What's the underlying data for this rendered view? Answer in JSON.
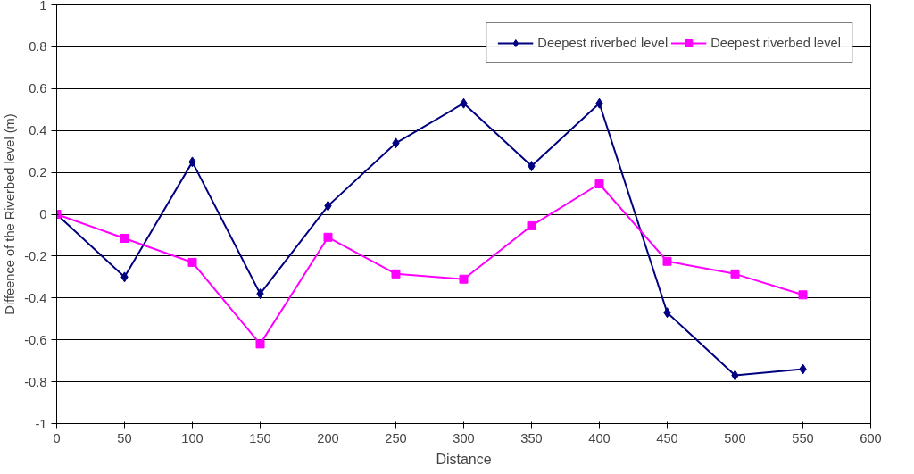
{
  "chart_data": {
    "type": "line",
    "xlabel": "Distance",
    "ylabel": "Diffeence of the Riverbed level (m)",
    "x": [
      0,
      50,
      100,
      150,
      200,
      250,
      300,
      350,
      400,
      450,
      500,
      550
    ],
    "series": [
      {
        "name": "Deepest riverbed level",
        "color": "#000080",
        "marker": "diamond",
        "values": [
          0,
          -0.3,
          0.25,
          -0.38,
          0.04,
          0.34,
          0.53,
          0.23,
          0.53,
          -0.47,
          -0.77,
          -0.74
        ]
      },
      {
        "name": "Deepest riverbed level",
        "color": "#ff00ff",
        "marker": "square",
        "values": [
          0,
          -0.115,
          -0.23,
          -0.62,
          -0.11,
          -0.285,
          -0.31,
          -0.055,
          0.145,
          -0.225,
          -0.285,
          -0.385
        ]
      }
    ],
    "xlim": [
      0,
      600
    ],
    "xticks": [
      0,
      50,
      100,
      150,
      200,
      250,
      300,
      350,
      400,
      450,
      500,
      550,
      600
    ],
    "ylim": [
      -1,
      1
    ],
    "yticks": [
      -1,
      -0.8,
      -0.6,
      -0.4,
      -0.2,
      0,
      0.2,
      0.4,
      0.6,
      0.8,
      1
    ],
    "grid": "y",
    "legend": "top right",
    "line_style": "solid"
  }
}
